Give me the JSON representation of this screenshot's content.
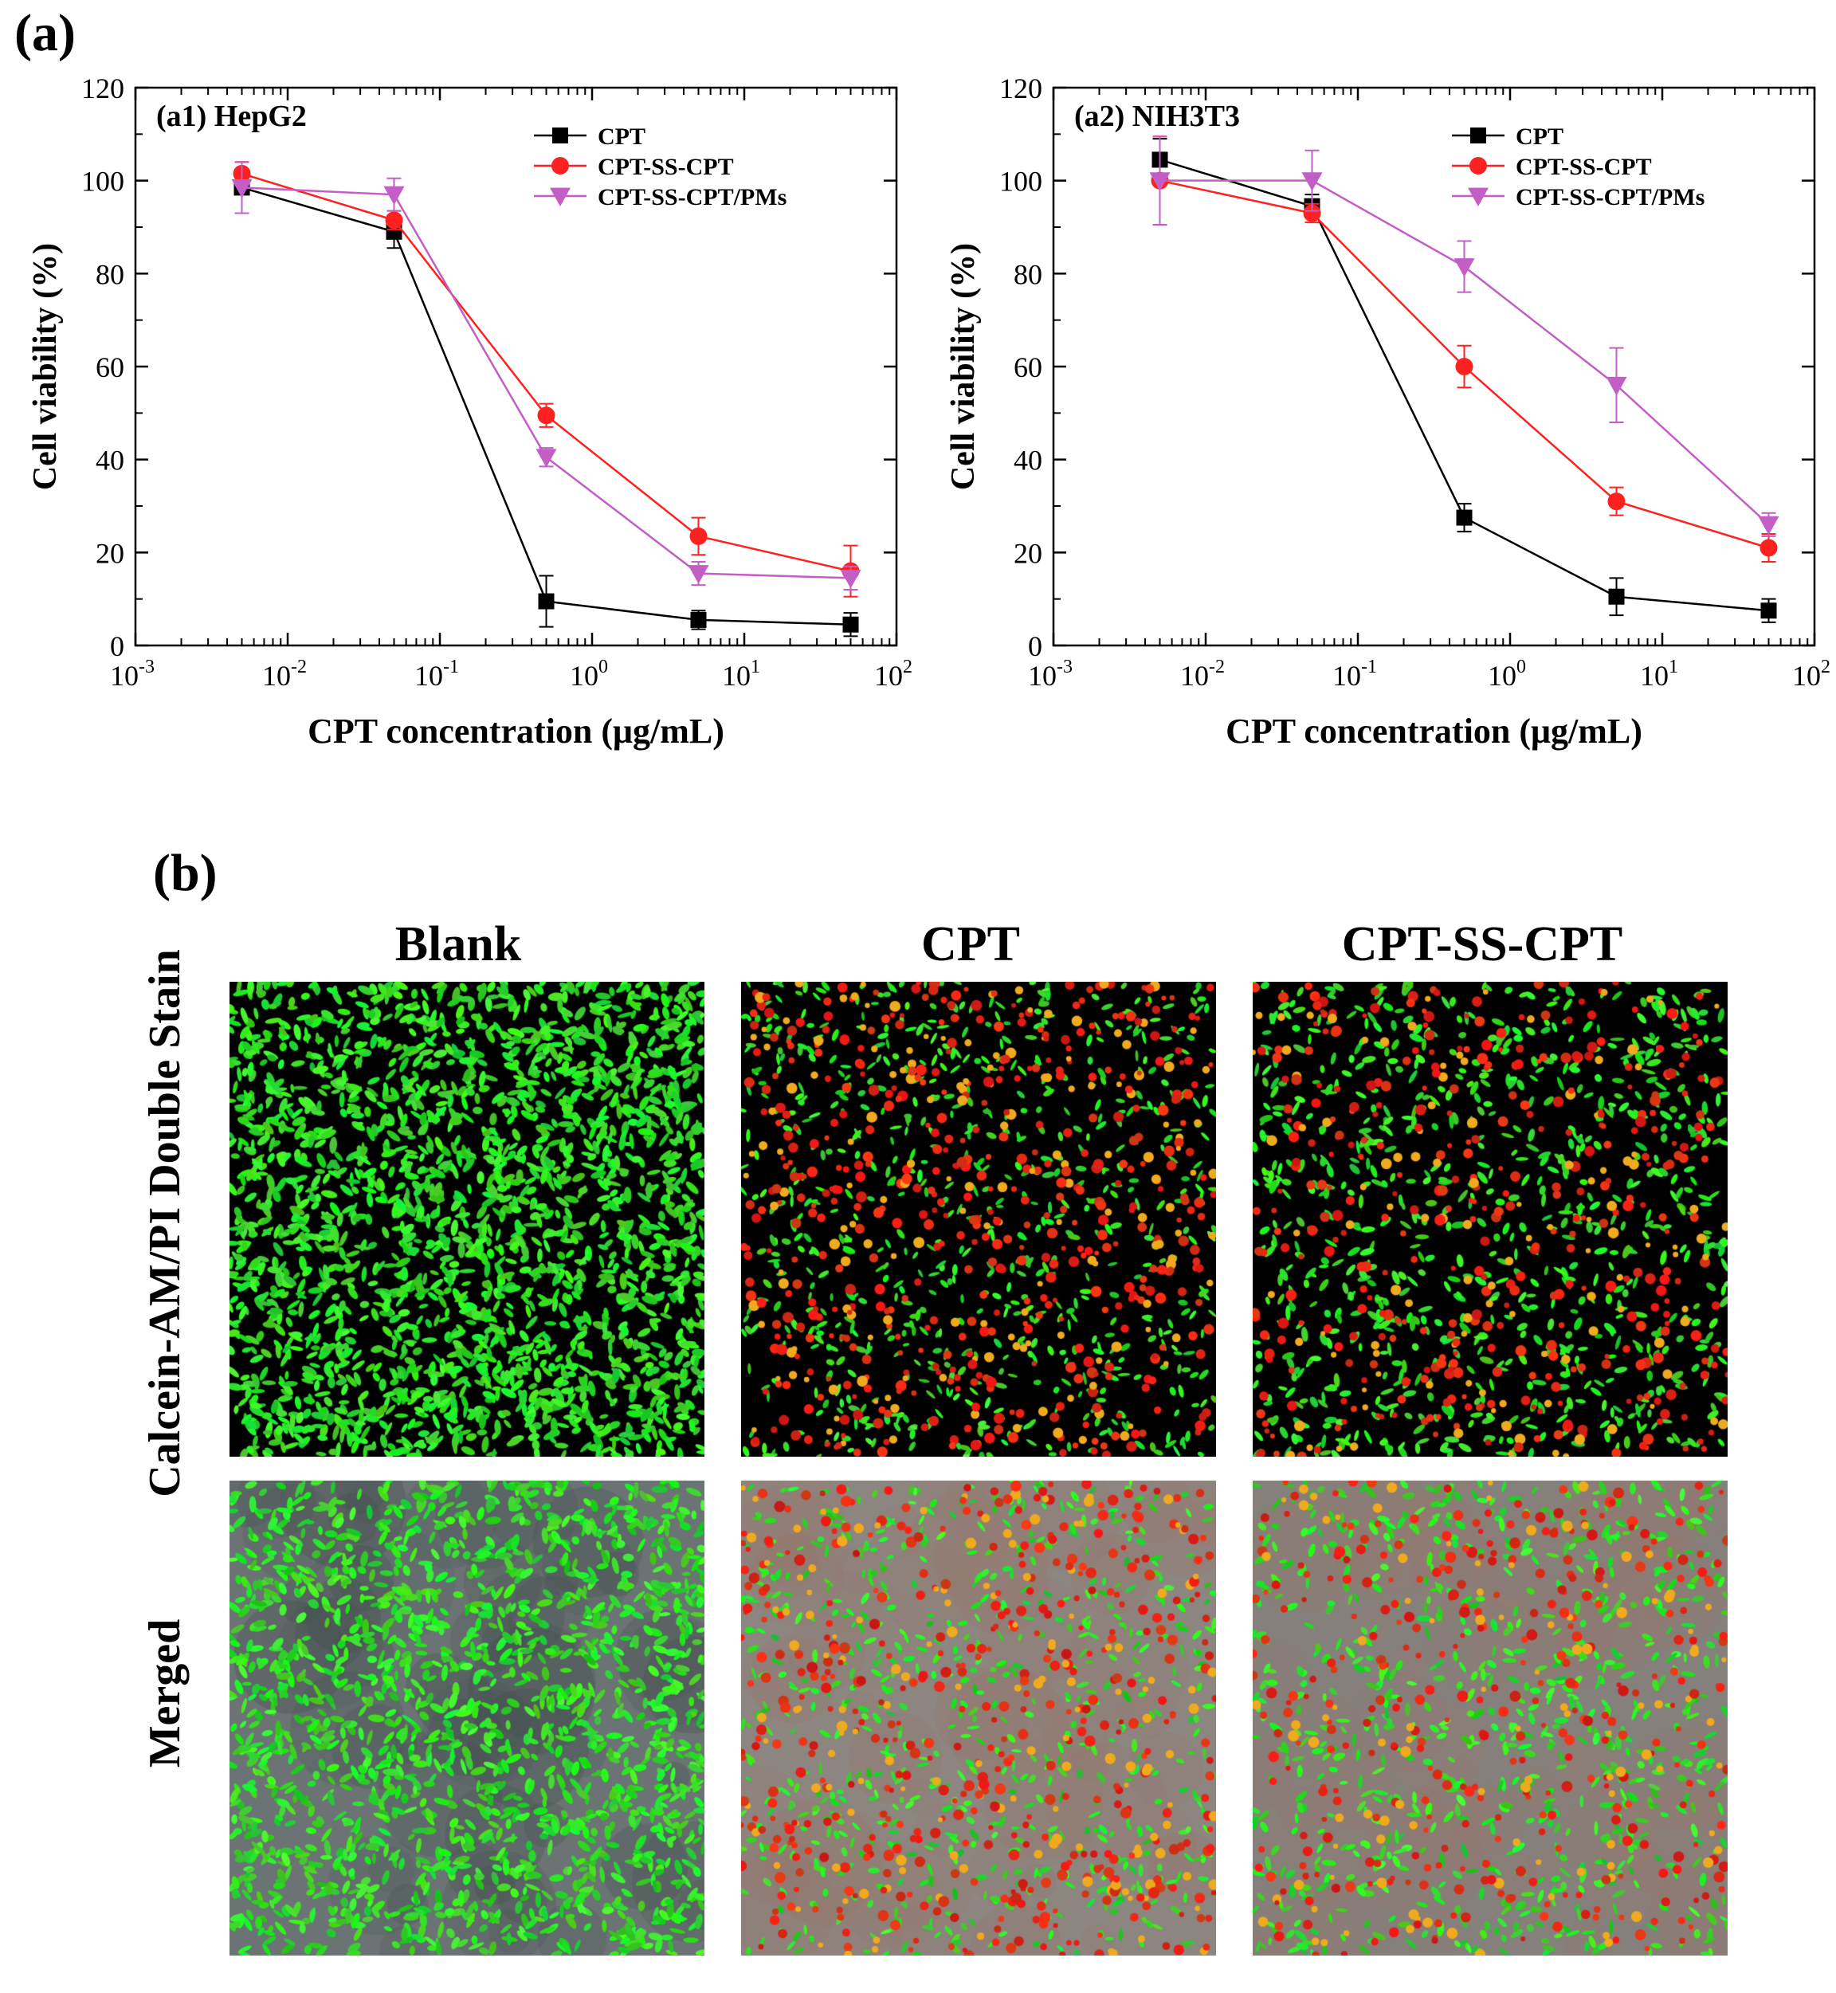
{
  "panel_a_label": "(a)",
  "panel_b_label": "(b)",
  "colors": {
    "CPT": "#000000",
    "CPT-SS-CPT": "#ff2020",
    "CPT-SS-CPT/PMs": "#c25ec5"
  },
  "chart_data": [
    {
      "type": "line",
      "title": "(a1) HepG2",
      "xlabel": "CPT concentration (μg/mL)",
      "ylabel": "Cell viability (%)",
      "xscale": "log",
      "xlim": [
        0.001,
        100
      ],
      "ylim": [
        0,
        120
      ],
      "yticks": [
        0,
        20,
        40,
        60,
        80,
        100,
        120
      ],
      "xticks": [
        {
          "base": "10",
          "exp": "-3"
        },
        {
          "base": "10",
          "exp": "-2"
        },
        {
          "base": "10",
          "exp": "-1"
        },
        {
          "base": "10",
          "exp": "0"
        },
        {
          "base": "10",
          "exp": "1"
        },
        {
          "base": "10",
          "exp": "2"
        }
      ],
      "legend_position": "top-right",
      "x": [
        0.005,
        0.05,
        0.5,
        5,
        50
      ],
      "series": [
        {
          "name": "CPT",
          "marker": "square",
          "values": [
            98.5,
            89,
            9.5,
            5.5,
            4.5
          ],
          "errors": [
            5.5,
            3.5,
            5.5,
            2,
            2.5
          ]
        },
        {
          "name": "CPT-SS-CPT",
          "marker": "circle",
          "values": [
            101.5,
            91.5,
            49.5,
            23.5,
            16
          ],
          "errors": [
            2.5,
            2,
            2.5,
            4,
            5.5
          ]
        },
        {
          "name": "CPT-SS-CPT/PMs",
          "marker": "triangle-down",
          "values": [
            98.5,
            97,
            40.5,
            15.5,
            14.5
          ],
          "errors": [
            5.5,
            3.5,
            2,
            2.5,
            2.5
          ]
        }
      ]
    },
    {
      "type": "line",
      "title": "(a2) NIH3T3",
      "xlabel": "CPT concentration (μg/mL)",
      "ylabel": "Cell viability (%)",
      "xscale": "log",
      "xlim": [
        0.001,
        100
      ],
      "ylim": [
        0,
        120
      ],
      "yticks": [
        0,
        20,
        40,
        60,
        80,
        100,
        120
      ],
      "xticks": [
        {
          "base": "10",
          "exp": "-3"
        },
        {
          "base": "10",
          "exp": "-2"
        },
        {
          "base": "10",
          "exp": "-1"
        },
        {
          "base": "10",
          "exp": "0"
        },
        {
          "base": "10",
          "exp": "1"
        },
        {
          "base": "10",
          "exp": "2"
        }
      ],
      "legend_position": "top-right",
      "x": [
        0.005,
        0.05,
        0.5,
        5,
        50
      ],
      "series": [
        {
          "name": "CPT",
          "marker": "square",
          "values": [
            104.5,
            94.5,
            27.5,
            10.5,
            7.5
          ],
          "errors": [
            4.5,
            2.5,
            3,
            4,
            2.5
          ]
        },
        {
          "name": "CPT-SS-CPT",
          "marker": "circle",
          "values": [
            100,
            93,
            60,
            31,
            21
          ],
          "errors": [
            9.5,
            2,
            4.5,
            3,
            3
          ]
        },
        {
          "name": "CPT-SS-CPT/PMs",
          "marker": "triangle-down",
          "values": [
            100,
            100,
            81.5,
            56,
            26
          ],
          "errors": [
            9.5,
            6.5,
            5.5,
            8,
            2.5
          ]
        }
      ]
    }
  ],
  "microscopy": {
    "column_titles": [
      "Blank",
      "CPT",
      "CPT-SS-CPT"
    ],
    "row_titles": [
      "Calcein-AM/PI Double Stain",
      "Merged"
    ]
  }
}
